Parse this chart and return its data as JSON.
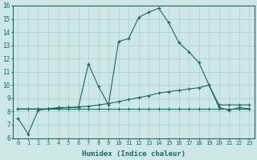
{
  "xlabel": "Humidex (Indice chaleur)",
  "ylabel": "",
  "xlim": [
    -0.5,
    23.5
  ],
  "ylim": [
    6,
    16
  ],
  "yticks": [
    6,
    7,
    8,
    9,
    10,
    11,
    12,
    13,
    14,
    15,
    16
  ],
  "xticks": [
    0,
    1,
    2,
    3,
    4,
    5,
    6,
    7,
    8,
    9,
    10,
    11,
    12,
    13,
    14,
    15,
    16,
    17,
    18,
    19,
    20,
    21,
    22,
    23
  ],
  "bg_color": "#cde8e5",
  "grid_color": "#b0d4d0",
  "line_color": "#1a6b5a",
  "series1_x": [
    0,
    1,
    2,
    3,
    4,
    5,
    6,
    7,
    8,
    9,
    10,
    11,
    12,
    13,
    14,
    15,
    16,
    17,
    18,
    19,
    20,
    21,
    22,
    23
  ],
  "series1_y": [
    7.5,
    6.3,
    8.1,
    8.2,
    8.3,
    8.3,
    8.3,
    11.6,
    9.9,
    8.5,
    13.3,
    13.5,
    15.1,
    15.5,
    15.8,
    14.7,
    13.2,
    12.5,
    11.7,
    10.0,
    8.3,
    8.1,
    8.3,
    8.2
  ],
  "series2_x": [
    0,
    1,
    2,
    3,
    4,
    5,
    6,
    7,
    8,
    9,
    10,
    11,
    12,
    13,
    14,
    15,
    16,
    17,
    18,
    19,
    20,
    21,
    22,
    23
  ],
  "series2_y": [
    8.2,
    8.2,
    8.2,
    8.2,
    8.2,
    8.2,
    8.2,
    8.2,
    8.2,
    8.2,
    8.2,
    8.2,
    8.2,
    8.2,
    8.2,
    8.2,
    8.2,
    8.2,
    8.2,
    8.2,
    8.2,
    8.2,
    8.2,
    8.2
  ],
  "series3_x": [
    0,
    1,
    2,
    3,
    4,
    5,
    6,
    7,
    8,
    9,
    10,
    11,
    12,
    13,
    14,
    15,
    16,
    17,
    18,
    19,
    20,
    21,
    22,
    23
  ],
  "series3_y": [
    8.2,
    8.2,
    8.2,
    8.2,
    8.25,
    8.3,
    8.35,
    8.4,
    8.5,
    8.6,
    8.75,
    8.9,
    9.05,
    9.2,
    9.4,
    9.5,
    9.6,
    9.7,
    9.8,
    10.0,
    8.5,
    8.5,
    8.5,
    8.5
  ]
}
